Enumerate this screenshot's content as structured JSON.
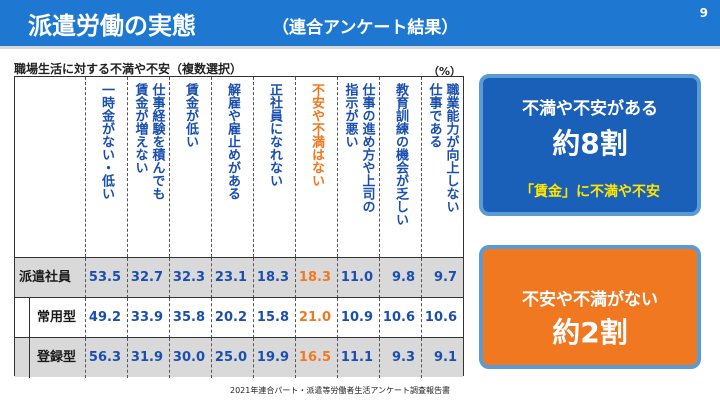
{
  "header": {
    "title": "派遣労働の実態",
    "subtitle": "（連合アンケート結果）",
    "page_number": "9"
  },
  "table": {
    "caption": "職場生活に対する不満や不安（複数選択）",
    "unit": "（%）",
    "columns": [
      "一時金がない・低い",
      "仕事経験を積んでも\n賃金が増えない",
      "賃金が低い",
      "解雇や雇止めがある",
      "正社員になれない",
      "不安や不満はない",
      "仕事の進め方や上司の\n指示が悪い",
      "教育訓練の機会が乏しい",
      "職業能力が向上しない\n仕事である"
    ],
    "rows": [
      {
        "label": "派遣社員",
        "values": [
          "53.5",
          "32.7",
          "32.3",
          "23.1",
          "18.3",
          "18.3",
          "11.0",
          "9.8",
          "9.7"
        ]
      },
      {
        "label": "常用型",
        "values": [
          "49.2",
          "33.9",
          "35.8",
          "20.2",
          "15.8",
          "21.0",
          "10.9",
          "10.6",
          "10.6"
        ]
      },
      {
        "label": "登録型",
        "values": [
          "56.3",
          "31.9",
          "30.0",
          "25.0",
          "19.9",
          "16.5",
          "11.1",
          "9.3",
          "9.1"
        ]
      }
    ],
    "highlight_color": "#f07820",
    "value_color": "#1a4fb0"
  },
  "source": "2021年連合パート・派遣等労働者生活アンケート調査報告書",
  "box_dissatisfied": {
    "line1": "不満や不安がある",
    "line2": "約8割",
    "line3": "「賃金」に不満や不安",
    "color": "#1a5fb8"
  },
  "box_satisfied": {
    "line1": "不安や不満がない",
    "line2": "約2割",
    "color": "#f07820"
  }
}
